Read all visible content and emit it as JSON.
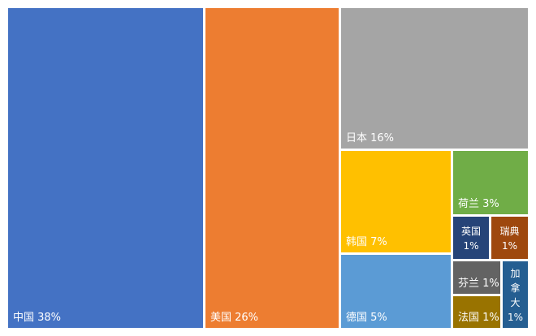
{
  "chart_data": {
    "type": "treemap",
    "title": "",
    "legend": "none",
    "items": [
      {
        "name": "中国",
        "label": "38%",
        "value": 38,
        "color": "#4472C4"
      },
      {
        "name": "美国",
        "label": "26%",
        "value": 26,
        "color": "#ED7D31"
      },
      {
        "name": "日本",
        "label": "16%",
        "value": 16,
        "color": "#A5A5A5"
      },
      {
        "name": "韩国",
        "label": "7%",
        "value": 7,
        "color": "#FFC000"
      },
      {
        "name": "德国",
        "label": "5%",
        "value": 5,
        "color": "#5B9BD5"
      },
      {
        "name": "荷兰",
        "label": "3%",
        "value": 3,
        "color": "#70AD47"
      },
      {
        "name": "英国",
        "label": "1%",
        "value": 1,
        "color": "#264478"
      },
      {
        "name": "瑞典",
        "label": "1%",
        "value": 1,
        "color": "#9E480E"
      },
      {
        "name": "芬兰",
        "label": "1%",
        "value": 1,
        "color": "#636363"
      },
      {
        "name": "法国",
        "label": "1%",
        "value": 1,
        "color": "#997300"
      },
      {
        "name": "加拿大",
        "label": "1%",
        "value": 1,
        "color": "#255E91"
      }
    ]
  }
}
